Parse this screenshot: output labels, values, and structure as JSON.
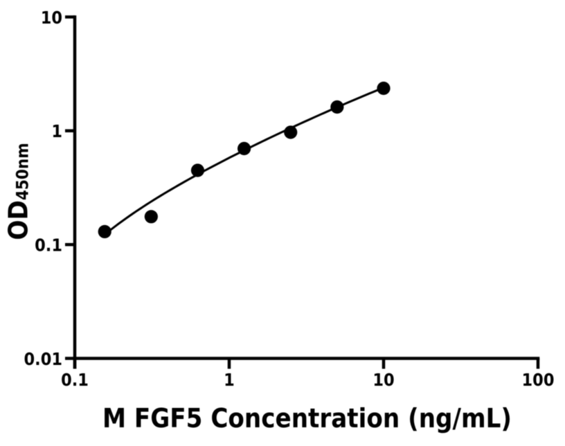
{
  "chart_data": {
    "type": "scatter",
    "title": "",
    "xlabel": "M FGF5 Concentration (ng/mL)",
    "ylabel": "OD450nm",
    "ylabel_main": "OD",
    "ylabel_sub": "450nm",
    "x_scale": "log",
    "y_scale": "log",
    "xlim": [
      0.1,
      100
    ],
    "ylim": [
      0.01,
      10
    ],
    "x_tick_values": [
      0.1,
      1,
      10,
      100
    ],
    "x_tick_labels": [
      "0.1",
      "1",
      "10",
      "100"
    ],
    "y_tick_values": [
      10,
      1,
      0.1,
      0.01
    ],
    "y_tick_labels": [
      "10",
      "1",
      "0.1",
      "0.01"
    ],
    "grid": false,
    "legend": false,
    "points": {
      "x": [
        0.15625,
        0.3125,
        0.625,
        1.25,
        2.5,
        5,
        10
      ],
      "y": [
        0.13,
        0.176,
        0.449,
        0.698,
        0.97,
        1.618,
        2.362
      ]
    },
    "fit_curve": {
      "model": "4pl",
      "params": {
        "a": -0.1023,
        "b": 0.61,
        "c": 217.389,
        "d": 18.7155
      },
      "x_range": [
        0.15625,
        10
      ]
    },
    "colors": {
      "marker": "#000000",
      "curve": "#000000",
      "axis": "#000000",
      "background": "#ffffff"
    }
  }
}
